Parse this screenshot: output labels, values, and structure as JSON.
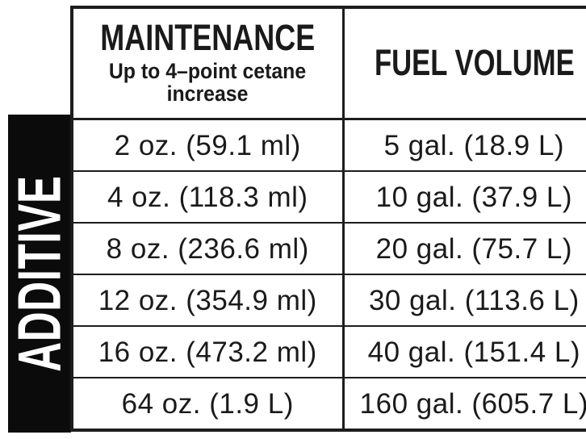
{
  "page": {
    "background": "#ffffff"
  },
  "sidebar": {
    "label": "ADDITIVE",
    "bg_color": "#0b0b0b",
    "text_color": "#ffffff"
  },
  "table": {
    "ink_color": "#1d1d1d",
    "columns": [
      {
        "title": "MAINTENANCE",
        "subtitle": "Up to 4–point cetane increase"
      },
      {
        "title": "FUEL VOLUME",
        "subtitle": ""
      }
    ],
    "rows": [
      {
        "additive": "2 oz. (59.1 ml)",
        "fuel": "5 gal. (18.9 L)"
      },
      {
        "additive": "4 oz. (118.3 ml)",
        "fuel": "10 gal. (37.9 L)"
      },
      {
        "additive": "8 oz. (236.6 ml)",
        "fuel": "20 gal. (75.7 L)"
      },
      {
        "additive": "12 oz. (354.9 ml)",
        "fuel": "30 gal. (113.6 L)"
      },
      {
        "additive": "16 oz. (473.2 ml)",
        "fuel": "40 gal. (151.4 L)"
      },
      {
        "additive": "64 oz. (1.9 L)",
        "fuel": "160 gal. (605.7 L)"
      }
    ]
  }
}
